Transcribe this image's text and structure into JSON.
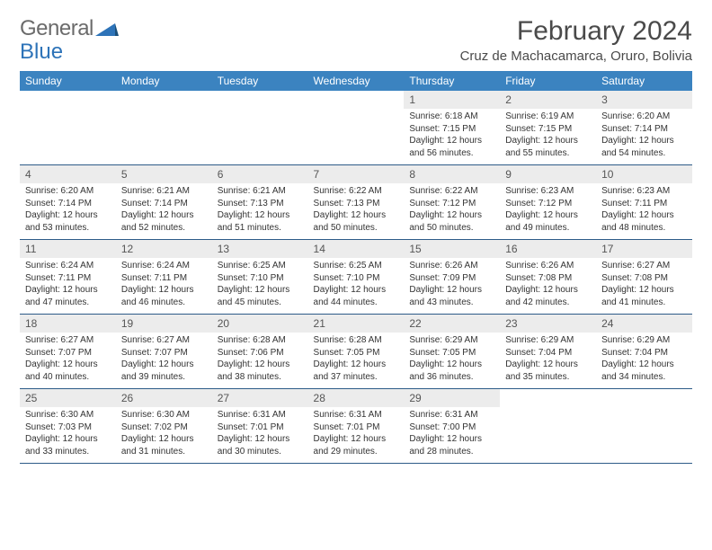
{
  "logo": {
    "text_gray": "General",
    "text_blue": "Blue"
  },
  "title": "February 2024",
  "location": "Cruz de Machacamarca, Oruro, Bolivia",
  "colors": {
    "header_bg": "#3b83c0",
    "header_text": "#ffffff",
    "daynum_bg": "#ececec",
    "row_divider": "#2d5b88",
    "body_text": "#333333",
    "logo_gray": "#6b6b6b",
    "logo_blue": "#2d73b8",
    "page_bg": "#ffffff"
  },
  "typography": {
    "title_fontsize": 30,
    "location_fontsize": 15,
    "dow_fontsize": 12,
    "daynum_fontsize": 12,
    "body_fontsize": 10
  },
  "days_of_week": [
    "Sunday",
    "Monday",
    "Tuesday",
    "Wednesday",
    "Thursday",
    "Friday",
    "Saturday"
  ],
  "weeks": [
    [
      null,
      null,
      null,
      null,
      {
        "n": "1",
        "sr": "Sunrise: 6:18 AM",
        "ss": "Sunset: 7:15 PM",
        "d1": "Daylight: 12 hours",
        "d2": "and 56 minutes."
      },
      {
        "n": "2",
        "sr": "Sunrise: 6:19 AM",
        "ss": "Sunset: 7:15 PM",
        "d1": "Daylight: 12 hours",
        "d2": "and 55 minutes."
      },
      {
        "n": "3",
        "sr": "Sunrise: 6:20 AM",
        "ss": "Sunset: 7:14 PM",
        "d1": "Daylight: 12 hours",
        "d2": "and 54 minutes."
      }
    ],
    [
      {
        "n": "4",
        "sr": "Sunrise: 6:20 AM",
        "ss": "Sunset: 7:14 PM",
        "d1": "Daylight: 12 hours",
        "d2": "and 53 minutes."
      },
      {
        "n": "5",
        "sr": "Sunrise: 6:21 AM",
        "ss": "Sunset: 7:14 PM",
        "d1": "Daylight: 12 hours",
        "d2": "and 52 minutes."
      },
      {
        "n": "6",
        "sr": "Sunrise: 6:21 AM",
        "ss": "Sunset: 7:13 PM",
        "d1": "Daylight: 12 hours",
        "d2": "and 51 minutes."
      },
      {
        "n": "7",
        "sr": "Sunrise: 6:22 AM",
        "ss": "Sunset: 7:13 PM",
        "d1": "Daylight: 12 hours",
        "d2": "and 50 minutes."
      },
      {
        "n": "8",
        "sr": "Sunrise: 6:22 AM",
        "ss": "Sunset: 7:12 PM",
        "d1": "Daylight: 12 hours",
        "d2": "and 50 minutes."
      },
      {
        "n": "9",
        "sr": "Sunrise: 6:23 AM",
        "ss": "Sunset: 7:12 PM",
        "d1": "Daylight: 12 hours",
        "d2": "and 49 minutes."
      },
      {
        "n": "10",
        "sr": "Sunrise: 6:23 AM",
        "ss": "Sunset: 7:11 PM",
        "d1": "Daylight: 12 hours",
        "d2": "and 48 minutes."
      }
    ],
    [
      {
        "n": "11",
        "sr": "Sunrise: 6:24 AM",
        "ss": "Sunset: 7:11 PM",
        "d1": "Daylight: 12 hours",
        "d2": "and 47 minutes."
      },
      {
        "n": "12",
        "sr": "Sunrise: 6:24 AM",
        "ss": "Sunset: 7:11 PM",
        "d1": "Daylight: 12 hours",
        "d2": "and 46 minutes."
      },
      {
        "n": "13",
        "sr": "Sunrise: 6:25 AM",
        "ss": "Sunset: 7:10 PM",
        "d1": "Daylight: 12 hours",
        "d2": "and 45 minutes."
      },
      {
        "n": "14",
        "sr": "Sunrise: 6:25 AM",
        "ss": "Sunset: 7:10 PM",
        "d1": "Daylight: 12 hours",
        "d2": "and 44 minutes."
      },
      {
        "n": "15",
        "sr": "Sunrise: 6:26 AM",
        "ss": "Sunset: 7:09 PM",
        "d1": "Daylight: 12 hours",
        "d2": "and 43 minutes."
      },
      {
        "n": "16",
        "sr": "Sunrise: 6:26 AM",
        "ss": "Sunset: 7:08 PM",
        "d1": "Daylight: 12 hours",
        "d2": "and 42 minutes."
      },
      {
        "n": "17",
        "sr": "Sunrise: 6:27 AM",
        "ss": "Sunset: 7:08 PM",
        "d1": "Daylight: 12 hours",
        "d2": "and 41 minutes."
      }
    ],
    [
      {
        "n": "18",
        "sr": "Sunrise: 6:27 AM",
        "ss": "Sunset: 7:07 PM",
        "d1": "Daylight: 12 hours",
        "d2": "and 40 minutes."
      },
      {
        "n": "19",
        "sr": "Sunrise: 6:27 AM",
        "ss": "Sunset: 7:07 PM",
        "d1": "Daylight: 12 hours",
        "d2": "and 39 minutes."
      },
      {
        "n": "20",
        "sr": "Sunrise: 6:28 AM",
        "ss": "Sunset: 7:06 PM",
        "d1": "Daylight: 12 hours",
        "d2": "and 38 minutes."
      },
      {
        "n": "21",
        "sr": "Sunrise: 6:28 AM",
        "ss": "Sunset: 7:05 PM",
        "d1": "Daylight: 12 hours",
        "d2": "and 37 minutes."
      },
      {
        "n": "22",
        "sr": "Sunrise: 6:29 AM",
        "ss": "Sunset: 7:05 PM",
        "d1": "Daylight: 12 hours",
        "d2": "and 36 minutes."
      },
      {
        "n": "23",
        "sr": "Sunrise: 6:29 AM",
        "ss": "Sunset: 7:04 PM",
        "d1": "Daylight: 12 hours",
        "d2": "and 35 minutes."
      },
      {
        "n": "24",
        "sr": "Sunrise: 6:29 AM",
        "ss": "Sunset: 7:04 PM",
        "d1": "Daylight: 12 hours",
        "d2": "and 34 minutes."
      }
    ],
    [
      {
        "n": "25",
        "sr": "Sunrise: 6:30 AM",
        "ss": "Sunset: 7:03 PM",
        "d1": "Daylight: 12 hours",
        "d2": "and 33 minutes."
      },
      {
        "n": "26",
        "sr": "Sunrise: 6:30 AM",
        "ss": "Sunset: 7:02 PM",
        "d1": "Daylight: 12 hours",
        "d2": "and 31 minutes."
      },
      {
        "n": "27",
        "sr": "Sunrise: 6:31 AM",
        "ss": "Sunset: 7:01 PM",
        "d1": "Daylight: 12 hours",
        "d2": "and 30 minutes."
      },
      {
        "n": "28",
        "sr": "Sunrise: 6:31 AM",
        "ss": "Sunset: 7:01 PM",
        "d1": "Daylight: 12 hours",
        "d2": "and 29 minutes."
      },
      {
        "n": "29",
        "sr": "Sunrise: 6:31 AM",
        "ss": "Sunset: 7:00 PM",
        "d1": "Daylight: 12 hours",
        "d2": "and 28 minutes."
      },
      null,
      null
    ]
  ]
}
